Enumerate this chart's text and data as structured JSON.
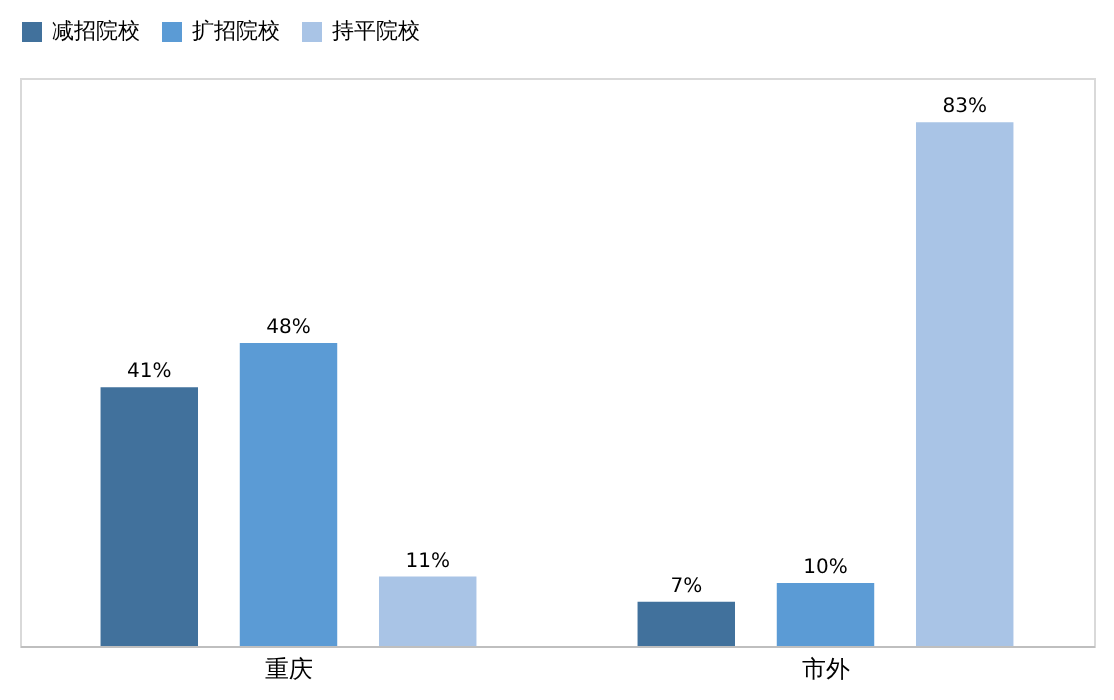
{
  "chart_data": {
    "type": "bar",
    "categories": [
      "重庆",
      "市外"
    ],
    "series": [
      {
        "name": "减招院校",
        "color": "#41719c",
        "values": [
          41,
          7
        ],
        "value_labels": [
          "41%",
          "7%"
        ]
      },
      {
        "name": "扩招院校",
        "color": "#5b9bd5",
        "values": [
          48,
          10
        ],
        "value_labels": [
          "48%",
          "10%"
        ]
      },
      {
        "name": "持平院校",
        "color": "#a9c4e6",
        "values": [
          11,
          83
        ],
        "value_labels": [
          "11%",
          "83%"
        ]
      }
    ],
    "legend": "top",
    "grid": false
  }
}
